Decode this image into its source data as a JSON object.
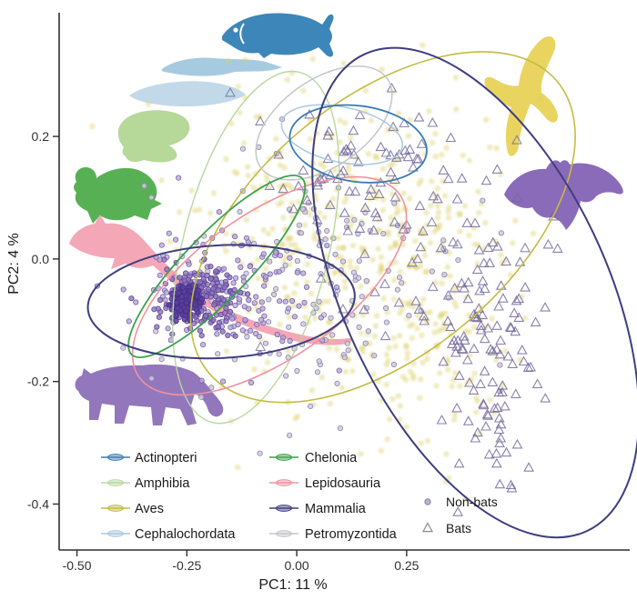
{
  "figure": {
    "background": "#ffffff"
  },
  "chart_data": {
    "type": "scatter",
    "title": "",
    "xlabel": "PC1: 11 %",
    "ylabel": "PC2: 4 %",
    "xlim": [
      -0.5405,
      0.7575
    ],
    "ylim": [
      -0.475,
      0.396
    ],
    "grid": "off",
    "x_ticks": [
      {
        "value": -0.5,
        "label": "-0.50"
      },
      {
        "value": -0.25,
        "label": "-0.25"
      },
      {
        "value": 0.0,
        "label": "0.00"
      },
      {
        "value": 0.25,
        "label": "0.25"
      }
    ],
    "y_ticks": [
      {
        "value": 0.2,
        "label": "0.2"
      },
      {
        "value": 0.0,
        "label": "0.0"
      },
      {
        "value": -0.2,
        "label": "-0.2"
      },
      {
        "value": -0.4,
        "label": "-0.4"
      }
    ],
    "classes": [
      {
        "label": "Actinopteri",
        "color": "#3a7cb5"
      },
      {
        "label": "Amphibia",
        "color": "#b9d7a0"
      },
      {
        "label": "Aves",
        "color": "#c4bb42"
      },
      {
        "label": "Cephalochordata",
        "color": "#aac9e0"
      },
      {
        "label": "Chelonia",
        "color": "#3ca14b"
      },
      {
        "label": "Lepidosauria",
        "color": "#ef93a1"
      },
      {
        "label": "Mammalia",
        "color": "#3e3d80"
      },
      {
        "label": "Petromyzontida",
        "color": "#c3c6cb"
      }
    ],
    "shape_legend": [
      {
        "label": "Non-bats",
        "marker": "circle"
      },
      {
        "label": "Bats",
        "marker": "triangle"
      }
    ],
    "ellipses": [
      {
        "class": "Amphibia",
        "cx": -0.093,
        "cy": 0.019,
        "rx": 0.411,
        "ry": 0.119,
        "rot": 104,
        "color": "#b9d7a0",
        "sw": 1.4
      },
      {
        "class": "Aves",
        "cx": 0.196,
        "cy": 0.052,
        "rx": 0.517,
        "ry": 0.207,
        "rot": -40,
        "color": "#c4bb42",
        "sw": 1.6
      },
      {
        "class": "Petromyzontida",
        "cx": 0.062,
        "cy": 0.222,
        "rx": 0.176,
        "ry": 0.071,
        "rot": -35,
        "color": "#c3c6cb",
        "sw": 1.5
      },
      {
        "class": "Lepidosauria",
        "cx": -0.062,
        "cy": -0.044,
        "rx": 0.362,
        "ry": 0.119,
        "rot": -35,
        "color": "#ef93a1",
        "sw": 1.6
      },
      {
        "class": "Cephalochordata",
        "cx": 0.103,
        "cy": 0.203,
        "rx": 0.14,
        "ry": 0.045,
        "rot": 12,
        "color": "#aac9e0",
        "sw": 1.5
      },
      {
        "class": "Chelonia",
        "cx": -0.182,
        "cy": -0.012,
        "rx": 0.279,
        "ry": 0.053,
        "rot": -46,
        "color": "#3ca14b",
        "sw": 1.8
      },
      {
        "class": "Actinopteri",
        "cx": 0.14,
        "cy": 0.188,
        "rx": 0.157,
        "ry": 0.062,
        "rot": 8,
        "color": "#3a7cb5",
        "sw": 1.8
      },
      {
        "class": "Mammalia (non-bats)",
        "cx": -0.1715,
        "cy": -0.0696,
        "rx": 0.304,
        "ry": 0.092,
        "rot": -3,
        "color": "#3e3d80",
        "sw": 2
      },
      {
        "class": "Mammalia (bats)",
        "cx": 0.407,
        "cy": -0.055,
        "rx": 0.599,
        "ry": 0.215,
        "rot": 65,
        "color": "#3e3d80",
        "sw": 2
      }
    ],
    "clusters": [
      {
        "name": "aves-cloud",
        "class": "Aves",
        "marker": "circle",
        "n": 380,
        "cx": 0.09,
        "cy": 0.03,
        "sx": 0.16,
        "sy": 0.13,
        "r": 3.2,
        "fill": "#d9ce5c",
        "opacity": 0.4,
        "stroke": "none",
        "blur": true,
        "seed": 11
      },
      {
        "name": "aves-right",
        "class": "Aves",
        "marker": "circle",
        "n": 150,
        "cx": 0.3,
        "cy": -0.09,
        "sx": 0.09,
        "sy": 0.11,
        "r": 3.2,
        "fill": "#d9ce5c",
        "opacity": 0.4,
        "stroke": "none",
        "blur": true,
        "seed": 12
      },
      {
        "name": "nonbats-mixed",
        "class": "mixed",
        "marker": "circle",
        "n": 150,
        "cx": 0.0,
        "cy": -0.04,
        "sx": 0.18,
        "sy": 0.1,
        "r": 2.7,
        "fill": "#cfcade",
        "opacity": 0.85,
        "stroke": "#8f86ac",
        "blur": false,
        "seed": 13
      },
      {
        "name": "mammalia-wide",
        "class": "Mammalia",
        "marker": "circle",
        "n": 160,
        "cx": -0.15,
        "cy": -0.05,
        "sx": 0.1,
        "sy": 0.055,
        "r": 2.7,
        "fill": "#b7a8d6",
        "opacity": 0.8,
        "stroke": "#7a66ab",
        "blur": false,
        "seed": 14
      },
      {
        "name": "mammalia-mid",
        "class": "Mammalia",
        "marker": "circle",
        "n": 180,
        "cx": -0.22,
        "cy": -0.06,
        "sx": 0.045,
        "sy": 0.028,
        "r": 2.7,
        "fill": "#8d72bb",
        "opacity": 0.8,
        "stroke": "#5d4798",
        "blur": false,
        "seed": 15
      },
      {
        "name": "mammalia-core",
        "class": "Mammalia",
        "marker": "circle",
        "n": 150,
        "cx": -0.25,
        "cy": -0.068,
        "sx": 0.016,
        "sy": 0.013,
        "r": 2.7,
        "fill": "#5b3f9e",
        "opacity": 0.85,
        "stroke": "#472f86",
        "blur": false,
        "seed": 16
      },
      {
        "name": "bats-top",
        "class": "Mammalia",
        "marker": "triangle",
        "n": 55,
        "cx": 0.16,
        "cy": 0.145,
        "sx": 0.1,
        "sy": 0.065,
        "r": 5.5,
        "fill": "none",
        "opacity": 0.85,
        "stroke": "#756b9d",
        "blur": false,
        "seed": 17
      },
      {
        "name": "bats-scatter",
        "class": "Mammalia",
        "marker": "triangle",
        "n": 45,
        "cx": 0.22,
        "cy": 0.02,
        "sx": 0.16,
        "sy": 0.12,
        "r": 5.5,
        "fill": "none",
        "opacity": 0.8,
        "stroke": "#756b9d",
        "blur": false,
        "seed": 18
      },
      {
        "name": "bats-bottom-right",
        "class": "Mammalia",
        "marker": "triangle",
        "n": 115,
        "cx": 0.43,
        "cy": -0.14,
        "sx": 0.065,
        "sy": 0.11,
        "r": 5.5,
        "fill": "none",
        "opacity": 0.85,
        "stroke": "#756b9d",
        "blur": false,
        "seed": 19
      }
    ],
    "legend_position": "bottom-inside"
  },
  "silhouettes": [
    {
      "name": "actinopteri-fish-icon",
      "color": "#3d86ba"
    },
    {
      "name": "petromyzontida-lamprey-icon",
      "color": "#a6cbe0"
    },
    {
      "name": "cephalochordata-lancelet-icon",
      "color": "#c2d9e9"
    },
    {
      "name": "amphibia-frog-icon",
      "color": "#b6d898"
    },
    {
      "name": "chelonia-turtle-icon",
      "color": "#58b054"
    },
    {
      "name": "lepidosauria-lizard-icon",
      "color": "#f4a7b6"
    },
    {
      "name": "mammalia-panther-icon",
      "color": "#9377bd"
    },
    {
      "name": "aves-bird-icon",
      "color": "#e9d460"
    },
    {
      "name": "mammalia-bat-icon",
      "color": "#8a6bb9"
    }
  ]
}
